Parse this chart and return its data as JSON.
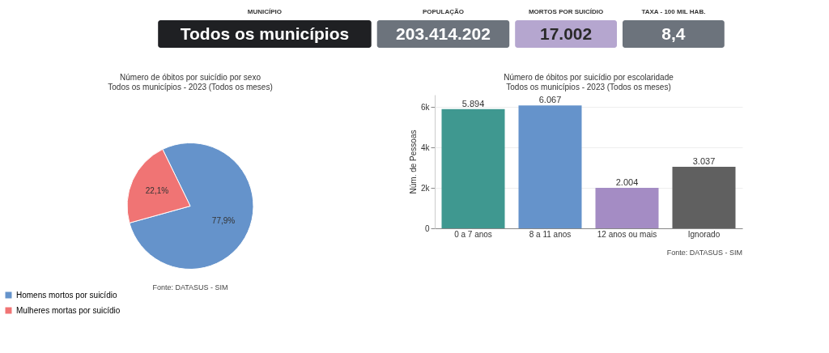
{
  "chart_data": [
    {
      "type": "other",
      "annotations": [
        "MUNICÍPIO",
        "Todos os municípios",
        "POPULAÇÃO",
        "203.414.202",
        "MORTOS POR SUICÍDIO",
        "17.002",
        "TAXA - 100 MIL HAB.",
        "8,4"
      ]
    },
    {
      "type": "pie",
      "title": "Número de óbitos por suicídio por sexo\nTodos os municípios - 2023 (Todos os meses)",
      "categories": [
        "Homens mortos por suicídio",
        "Mulheres mortas por suicídio"
      ],
      "values": [
        77.9,
        22.1
      ],
      "colors": [
        "#6593cb",
        "#f07474"
      ],
      "value_labels": [
        "77,9%",
        "22,1%"
      ],
      "legend": "bottom left",
      "annotations": [
        "Fonte: DATASUS - SIM"
      ]
    },
    {
      "type": "bar",
      "title": "Número de óbitos por suicídio por escolaridade\nTodos os municípios - 2023 (Todos os meses)",
      "categories": [
        "0 a 7 anos",
        "8 a 11 anos",
        "12 anos ou mais",
        "Ignorado"
      ],
      "values": [
        5894,
        6067,
        2004,
        3037
      ],
      "colors": [
        "#3f9890",
        "#6593cb",
        "#a48cc4",
        "#606060"
      ],
      "value_labels": [
        "5.894",
        "6.067",
        "2.004",
        "3.037"
      ],
      "ylabel": "Núm. de Pessoas",
      "ylim": [
        0,
        6600
      ],
      "yticks": [
        {
          "value": 0,
          "label": "0"
        },
        {
          "value": 2000,
          "label": "2k"
        },
        {
          "value": 4000,
          "label": "4k"
        },
        {
          "value": 6000,
          "label": "6k"
        }
      ],
      "grid": "y",
      "annotations": [
        "Fonte: DATASUS - SIM"
      ]
    }
  ]
}
